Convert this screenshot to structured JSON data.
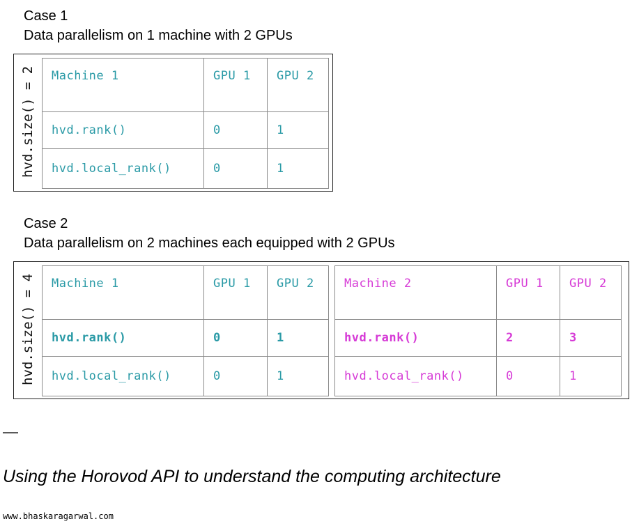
{
  "case1": {
    "title": "Case 1",
    "subtitle": "Data parallelism on 1 machine with 2 GPUs",
    "size_label": "hvd.size() = 2",
    "machine": {
      "headers": [
        "Machine 1",
        "GPU 1",
        "GPU 2"
      ],
      "rows": [
        [
          "hvd.rank()",
          "0",
          "1"
        ],
        [
          "hvd.local_rank()",
          "0",
          "1"
        ]
      ]
    }
  },
  "case2": {
    "title": "Case 2",
    "subtitle": "Data parallelism on 2 machines each equipped with 2 GPUs",
    "size_label": "hvd.size() = 4",
    "machines": [
      {
        "headers": [
          "Machine 1",
          "GPU 1",
          "GPU 2"
        ],
        "rows": [
          [
            "hvd.rank()",
            "0",
            "1"
          ],
          [
            "hvd.local_rank()",
            "0",
            "1"
          ]
        ]
      },
      {
        "headers": [
          "Machine 2",
          "GPU 1",
          "GPU 2"
        ],
        "rows": [
          [
            "hvd.rank()",
            "2",
            "3"
          ],
          [
            "hvd.local_rank()",
            "0",
            "1"
          ]
        ]
      }
    ]
  },
  "separator": "—",
  "caption": "Using the Horovod API to understand the computing architecture",
  "footer": "www.bhaskaragarwal.com",
  "colors": {
    "machine1": "#2a9aa6",
    "machine2": "#d63ad6",
    "border": "#8a8a8a",
    "frame": "#222222"
  }
}
